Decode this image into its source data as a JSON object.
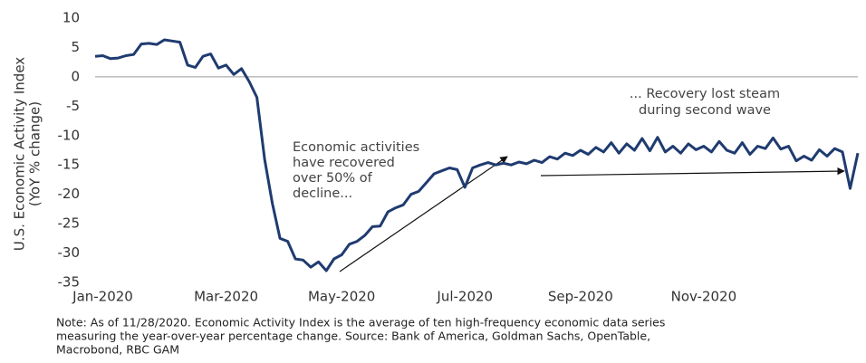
{
  "chart_data": {
    "type": "line",
    "y_label": [
      "U.S. Economic Activity Index",
      "(YoY % change)"
    ],
    "categories": [
      null,
      "Jan-2020",
      null,
      null,
      null,
      null,
      null,
      null,
      null,
      null,
      null,
      null,
      null,
      null,
      null,
      null,
      null,
      "Mar-2020",
      null,
      null,
      null,
      null,
      null,
      null,
      null,
      null,
      null,
      null,
      null,
      null,
      null,
      null,
      "May-2020",
      null,
      null,
      null,
      null,
      null,
      null,
      null,
      null,
      null,
      null,
      null,
      null,
      null,
      null,
      null,
      "Jul-2020",
      null,
      null,
      null,
      null,
      null,
      null,
      null,
      null,
      null,
      null,
      null,
      null,
      null,
      null,
      "Sep-2020",
      null,
      null,
      null,
      null,
      null,
      null,
      null,
      null,
      null,
      null,
      null,
      null,
      null,
      null,
      null,
      "Nov-2020",
      null,
      null,
      null,
      null,
      null,
      null,
      null,
      null,
      null,
      null,
      null,
      null,
      null,
      null,
      null,
      null,
      null,
      null,
      null,
      null
    ],
    "series": [
      {
        "color": "#1f3b70",
        "values": [
          3.5,
          3.6,
          3.1,
          3.2,
          3.6,
          3.8,
          5.6,
          5.7,
          5.5,
          6.3,
          6.1,
          5.9,
          2.0,
          1.6,
          3.5,
          3.9,
          1.5,
          2.0,
          0.4,
          1.4,
          -0.8,
          -3.5,
          -14,
          -21.5,
          -27.5,
          -28,
          -31,
          -31.2,
          -32.4,
          -31.5,
          -33,
          -31,
          -30.3,
          -28.5,
          -28,
          -27,
          -25.5,
          -25.4,
          -23,
          -22.3,
          -21.8,
          -20,
          -19.5,
          -18,
          -16.5,
          -16,
          -15.5,
          -15.8,
          -18.8,
          -15.5,
          -15,
          -14.6,
          -15,
          -14.7,
          -15,
          -14.5,
          -14.8,
          -14.2,
          -14.6,
          -13.6,
          -14,
          -13,
          -13.4,
          -12.5,
          -13.2,
          -12,
          -12.8,
          -11.2,
          -13,
          -11.4,
          -12.5,
          -10.5,
          -12.6,
          -10.3,
          -12.8,
          -11.8,
          -13,
          -11.4,
          -12.4,
          -11.8,
          -12.8,
          -11,
          -12.5,
          -13,
          -11.2,
          -13.2,
          -11.8,
          -12.2,
          -10.4,
          -12.3,
          -11.8,
          -14.3,
          -13.5,
          -14.2,
          -12.4,
          -13.5,
          -12.2,
          -12.8,
          -19,
          -13
        ]
      }
    ],
    "ylim": [
      -35,
      10
    ],
    "yticks": [
      10,
      5,
      0,
      -5,
      -10,
      -15,
      -20,
      -25,
      -30,
      -35
    ],
    "annotations": [
      {
        "lines": [
          "Economic activities",
          "have recovered",
          "over 50% of",
          "decline..."
        ]
      },
      {
        "lines": [
          "... Recovery lost steam",
          "during second wave"
        ]
      }
    ],
    "note": [
      "Note: As of 11/28/2020. Economic Activity Index is the average of ten high-frequency economic data series",
      "measuring the year-over-year percentage change. Source: Bank of America, Goldman Sachs, OpenTable,",
      "Macrobond, RBC GAM"
    ]
  }
}
